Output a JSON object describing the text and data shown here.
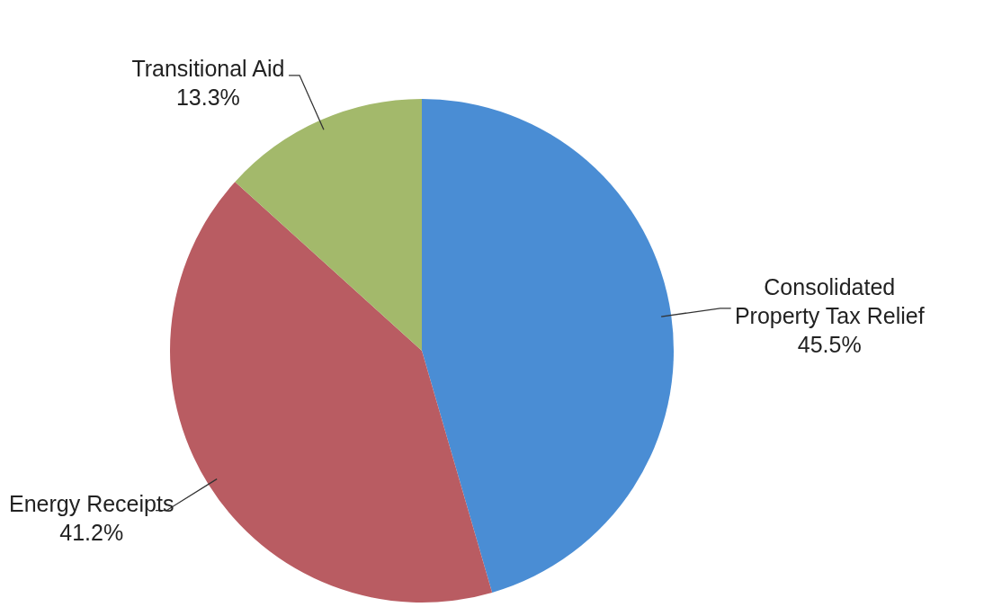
{
  "chart_data": {
    "type": "pie",
    "categories": [
      "Consolidated Property Tax Relief",
      "Energy Receipts",
      "Transitional Aid"
    ],
    "values": [
      45.5,
      41.2,
      13.3
    ],
    "colors": [
      "#4a8dd4",
      "#b95c62",
      "#a3b96b"
    ],
    "value_labels": [
      "45.5%",
      "41.2%",
      "13.3%"
    ],
    "legend": false
  }
}
